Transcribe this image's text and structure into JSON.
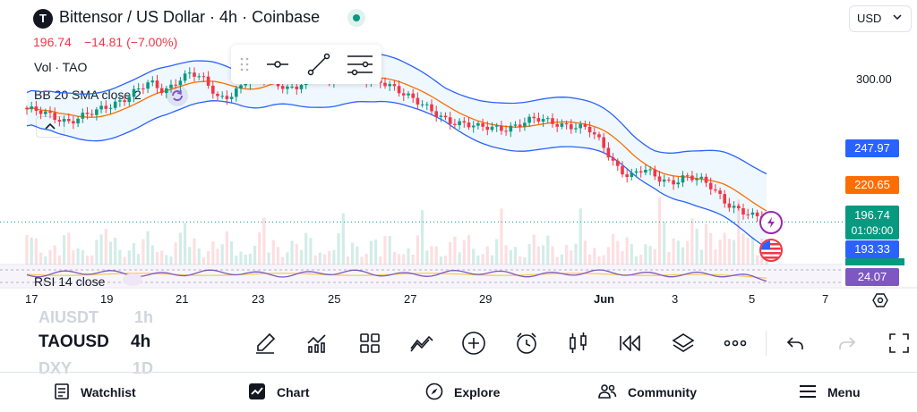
{
  "header": {
    "logo_letter": "T",
    "title": "Bittensor / US Dollar · 4h · Coinbase",
    "price": "196.74",
    "change": "−14.81 (−7.00%)",
    "currency": "USD"
  },
  "indicators": {
    "volume": "Vol · TAO",
    "bollinger": "BB 20 SMA close 2",
    "rsi": "RSI 14 close"
  },
  "price_axis": {
    "grid_label": "300.00",
    "bb_upper": "247.97",
    "bb_basis": "220.65",
    "last_price": "196.74",
    "countdown": "01:09:00",
    "bb_lower": "193.33",
    "rsi_value": "24.07"
  },
  "time_axis": [
    "17",
    "19",
    "21",
    "23",
    "25",
    "27",
    "29",
    "Jun",
    "3",
    "5",
    "7"
  ],
  "symbols": {
    "prev": "AIUSDT",
    "prev_interval": "1h",
    "current": "TAOUSD",
    "current_interval": "4h",
    "next": "DXY",
    "next_interval": "1D"
  },
  "toolbar_icons": [
    "brush-icon",
    "indicators-icon",
    "layouts-icon",
    "trend-icon",
    "add-icon",
    "alert-clock-icon",
    "candles-icon",
    "replay-icon",
    "layers-icon",
    "more-icon",
    "undo-icon",
    "redo-icon",
    "fullscreen-icon"
  ],
  "bottom_nav": {
    "watchlist": "Watchlist",
    "chart": "Chart",
    "explore": "Explore",
    "community": "Community",
    "menu": "Menu"
  },
  "colors": {
    "up": "#089981",
    "down": "#f23645",
    "bb_upper": "#2962ff",
    "bb_basis": "#ff6d00",
    "rsi": "#7e57c2",
    "last_price": "#089981"
  },
  "chart_data": {
    "type": "candlestick",
    "symbol": "TAOUSD",
    "interval": "4h",
    "last": 196.74,
    "bb_upper_last": 247.97,
    "bb_basis_last": 220.65,
    "bb_lower_last": 193.33,
    "rsi_last": 24.07,
    "close_path": [
      278,
      275,
      272,
      270,
      273,
      275,
      280,
      286,
      292,
      296,
      290,
      300,
      305,
      297,
      285,
      290,
      299,
      300,
      298,
      294,
      296,
      301,
      298,
      304,
      303,
      297,
      297,
      294,
      287,
      279,
      273,
      270,
      268,
      264,
      264,
      265,
      268,
      270,
      269,
      268,
      266,
      263,
      252,
      238,
      230,
      234,
      228,
      226,
      230,
      227,
      221,
      212,
      206,
      200,
      196.74
    ]
  }
}
